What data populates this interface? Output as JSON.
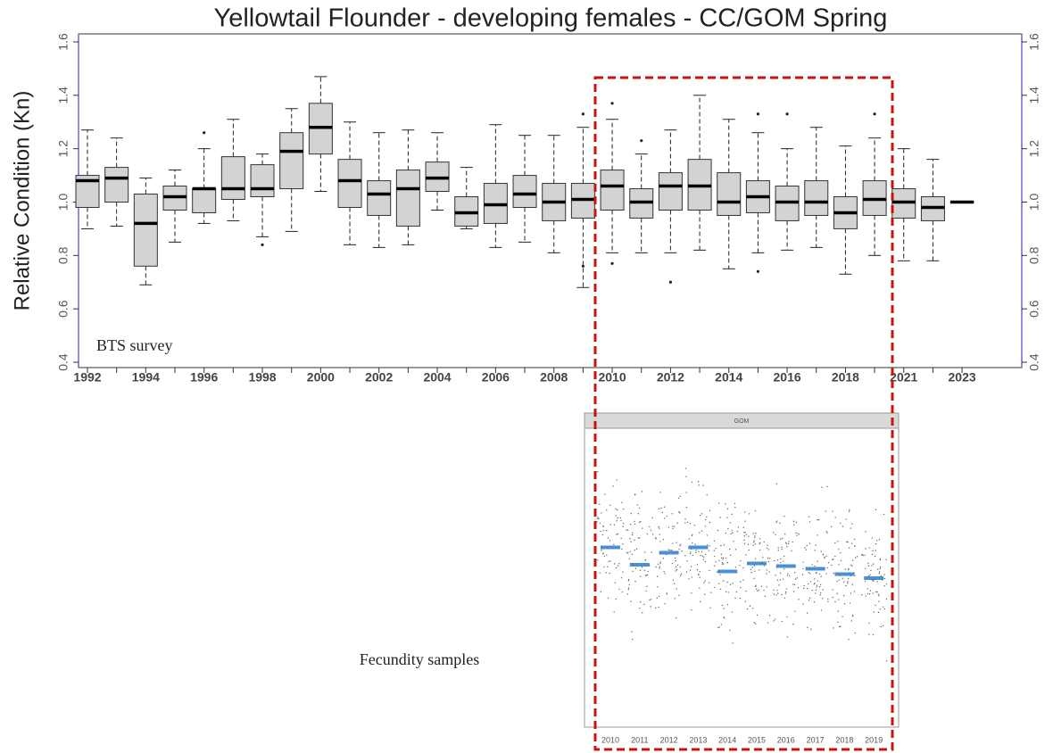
{
  "chart_data": [
    {
      "type": "boxplot",
      "title": "Yellowtail Flounder - developing females - CC/GOM Spring",
      "y_label": "Relative Condition (Kn)",
      "annotations": [
        "BTS survey"
      ],
      "categories": [
        "1992",
        null,
        "1994",
        null,
        "1996",
        null,
        "1998",
        null,
        "2000",
        null,
        "2002",
        null,
        "2004",
        null,
        "2006",
        null,
        "2008",
        null,
        "2010",
        null,
        "2012",
        null,
        "2014",
        null,
        "2016",
        null,
        "2018",
        null,
        "2021",
        null,
        "2023"
      ],
      "min": [
        0.9,
        0.91,
        0.69,
        0.85,
        0.92,
        0.93,
        0.87,
        0.89,
        1.04,
        0.84,
        0.83,
        0.84,
        0.97,
        0.9,
        0.83,
        0.85,
        0.81,
        0.68,
        0.81,
        0.81,
        0.81,
        0.82,
        0.75,
        0.81,
        0.82,
        0.83,
        0.73,
        0.8,
        0.78,
        0.78,
        1.0
      ],
      "q1": [
        0.98,
        1.0,
        0.76,
        0.97,
        0.96,
        1.01,
        1.02,
        1.05,
        1.18,
        0.98,
        0.95,
        0.91,
        1.04,
        0.91,
        0.92,
        0.98,
        0.93,
        0.94,
        0.97,
        0.94,
        0.97,
        0.97,
        0.95,
        0.96,
        0.93,
        0.95,
        0.9,
        0.95,
        0.94,
        0.93,
        1.0
      ],
      "median": [
        1.08,
        1.09,
        0.92,
        1.02,
        1.05,
        1.05,
        1.05,
        1.19,
        1.28,
        1.08,
        1.03,
        1.05,
        1.09,
        0.96,
        0.99,
        1.03,
        1.0,
        1.01,
        1.06,
        1.0,
        1.06,
        1.06,
        1.0,
        1.02,
        1.0,
        1.0,
        0.96,
        1.01,
        1.0,
        0.98,
        1.0
      ],
      "q3": [
        1.1,
        1.13,
        1.03,
        1.06,
        1.05,
        1.17,
        1.14,
        1.26,
        1.37,
        1.16,
        1.08,
        1.12,
        1.15,
        1.02,
        1.07,
        1.1,
        1.07,
        1.07,
        1.12,
        1.05,
        1.11,
        1.16,
        1.11,
        1.08,
        1.06,
        1.08,
        1.02,
        1.08,
        1.05,
        1.02,
        1.0
      ],
      "max": [
        1.27,
        1.24,
        1.09,
        1.12,
        1.2,
        1.31,
        1.18,
        1.35,
        1.47,
        1.3,
        1.26,
        1.27,
        1.26,
        1.13,
        1.29,
        1.25,
        1.25,
        1.28,
        1.31,
        1.18,
        1.27,
        1.4,
        1.31,
        1.26,
        1.2,
        1.28,
        1.21,
        1.24,
        1.2,
        1.16,
        1.0
      ],
      "outliers": [
        [],
        [],
        [],
        [],
        [
          1.26
        ],
        [],
        [
          0.84
        ],
        [],
        [],
        [],
        [],
        [],
        [],
        [],
        [],
        [],
        [],
        [
          0.76,
          1.33
        ],
        [
          0.77,
          1.37
        ],
        [
          1.23
        ],
        [
          0.7
        ],
        [],
        [],
        [
          0.74,
          1.33
        ],
        [
          1.33
        ],
        [],
        [],
        [
          1.33
        ],
        [],
        [],
        []
      ],
      "color": "#d3d3d3",
      "ylim": [
        0.38,
        1.63
      ],
      "yticks": [
        0.4,
        0.6,
        0.8,
        {
          "value": 1,
          "label": "1.0"
        },
        1.2,
        1.4,
        1.6
      ]
    },
    {
      "type": "strip",
      "panel": "GOM",
      "annotations": [
        "Fecundity samples"
      ],
      "categories": [
        "2010",
        "2011",
        "2012",
        "2013",
        "2014",
        "2015",
        "2016",
        "2017",
        "2018",
        "2019"
      ],
      "values": [
        1.13,
        1.0,
        1.09,
        1.13,
        0.95,
        1.01,
        0.99,
        0.97,
        0.93,
        0.9
      ],
      "color": "#4a90d9"
    }
  ]
}
